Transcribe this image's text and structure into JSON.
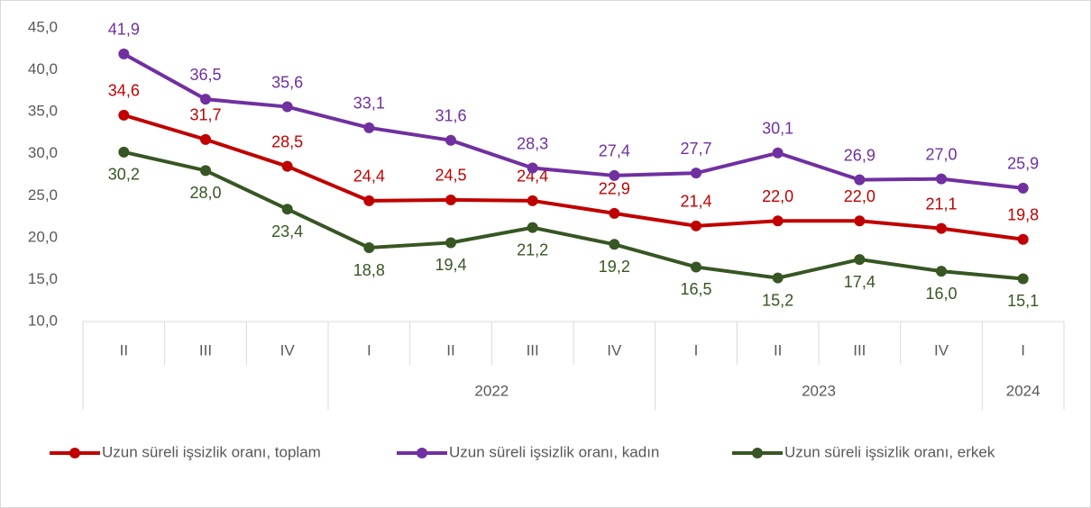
{
  "chart_data": {
    "type": "line",
    "categories": [
      "II",
      "III",
      "IV",
      "I",
      "II",
      "III",
      "IV",
      "I",
      "II",
      "III",
      "IV",
      "I"
    ],
    "category_groups": [
      {
        "label": null,
        "count": 3
      },
      {
        "label": "2022",
        "count": 4
      },
      {
        "label": "2023",
        "count": 4
      },
      {
        "label": "2024",
        "count": 1
      }
    ],
    "series": [
      {
        "name": "Uzun süreli işsizlik oranı, toplam",
        "color": "#c00000",
        "values": [
          34.6,
          31.7,
          28.5,
          24.4,
          24.5,
          24.4,
          22.9,
          21.4,
          22.0,
          22.0,
          21.1,
          19.8
        ],
        "value_labels": [
          "34,6",
          "31,7",
          "28,5",
          "24,4",
          "24,5",
          "24,4",
          "22,9",
          "21,4",
          "22,0",
          "22,0",
          "21,1",
          "19,8"
        ]
      },
      {
        "name": "Uzun süreli işsizlik oranı, kadın",
        "color": "#7030a0",
        "values": [
          41.9,
          36.5,
          35.6,
          33.1,
          31.6,
          28.3,
          27.4,
          27.7,
          30.1,
          26.9,
          27.0,
          25.9
        ],
        "value_labels": [
          "41,9",
          "36,5",
          "35,6",
          "33,1",
          "31,6",
          "28,3",
          "27,4",
          "27,7",
          "30,1",
          "26,9",
          "27,0",
          "25,9"
        ]
      },
      {
        "name": "Uzun süreli işsizlik oranı, erkek",
        "color": "#375623",
        "values": [
          30.2,
          28.0,
          23.4,
          18.8,
          19.4,
          21.2,
          19.2,
          16.5,
          15.2,
          17.4,
          16.0,
          15.1
        ],
        "value_labels": [
          "30,2",
          "28,0",
          "23,4",
          "18,8",
          "19,4",
          "21,2",
          "19,2",
          "16,5",
          "15,2",
          "17,4",
          "16,0",
          "15,1"
        ]
      }
    ],
    "ylim": [
      10,
      45
    ],
    "yticks": [
      {
        "value": 10,
        "label": "10,0"
      },
      {
        "value": 15,
        "label": "15,0"
      },
      {
        "value": 20,
        "label": "20,0"
      },
      {
        "value": 25,
        "label": "25,0"
      },
      {
        "value": 30,
        "label": "30,0"
      },
      {
        "value": 35,
        "label": "35,0"
      },
      {
        "value": 40,
        "label": "40,0"
      },
      {
        "value": 45,
        "label": "45,0"
      }
    ],
    "legend": "bottom"
  }
}
